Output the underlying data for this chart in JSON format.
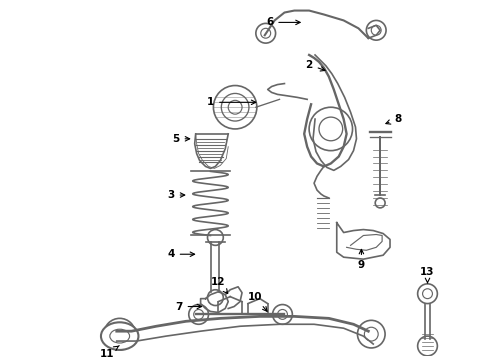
{
  "background_color": "#ffffff",
  "line_color": "#666666",
  "label_color": "#000000",
  "figsize": [
    4.9,
    3.6
  ],
  "dpi": 100
}
